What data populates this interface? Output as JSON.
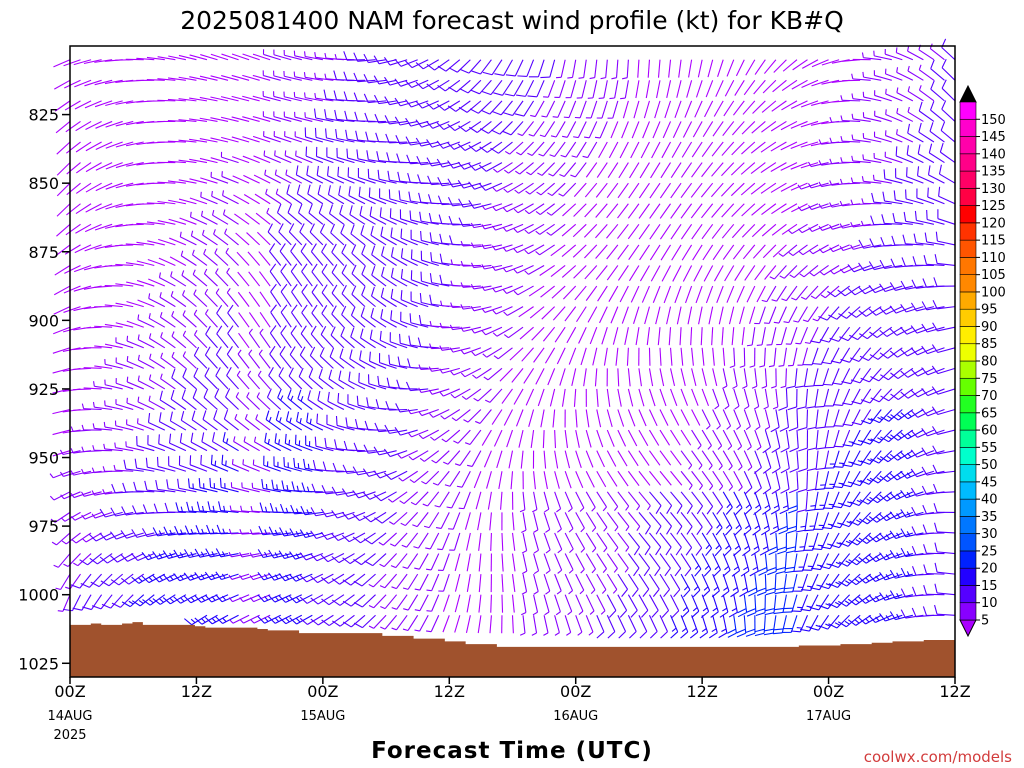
{
  "chart_data": {
    "type": "wind_barb_profile",
    "title": "2025081400 NAM forecast wind profile (kt) for KB#Q",
    "xlabel": "Forecast Time (UTC)",
    "ylabel": "",
    "credit": "coolwx.com/models",
    "y_axis": {
      "range_hpa": [
        1030,
        800
      ],
      "ticks": [
        "825",
        "850",
        "875",
        "900",
        "925",
        "950",
        "975",
        "1000",
        "1025"
      ]
    },
    "x_axis": {
      "range_hours": [
        0,
        84
      ],
      "ticks": [
        {
          "hour": 0,
          "label": "00Z",
          "date": "14AUG",
          "year": "2025"
        },
        {
          "hour": 12,
          "label": "12Z",
          "date": "",
          "year": ""
        },
        {
          "hour": 24,
          "label": "00Z",
          "date": "15AUG",
          "year": ""
        },
        {
          "hour": 36,
          "label": "12Z",
          "date": "",
          "year": ""
        },
        {
          "hour": 48,
          "label": "00Z",
          "date": "16AUG",
          "year": ""
        },
        {
          "hour": 60,
          "label": "12Z",
          "date": "",
          "year": ""
        },
        {
          "hour": 72,
          "label": "00Z",
          "date": "17AUG",
          "year": ""
        },
        {
          "hour": 84,
          "label": "12Z",
          "date": "",
          "year": ""
        }
      ]
    },
    "surface_pressure_hpa": [
      1011,
      1011,
      1010.5,
      1011,
      1011,
      1010.5,
      1010,
      1011,
      1011,
      1011,
      1011,
      1011,
      1011.5,
      1012,
      1012,
      1012,
      1012,
      1012,
      1012.5,
      1013,
      1013,
      1013,
      1014,
      1014,
      1014,
      1014,
      1014,
      1014,
      1014,
      1014,
      1015,
      1015,
      1015,
      1016,
      1016,
      1016,
      1017,
      1017,
      1018,
      1018,
      1018,
      1019,
      1019,
      1019,
      1019,
      1019,
      1019,
      1019,
      1019,
      1019,
      1019,
      1019,
      1019,
      1019,
      1019,
      1019,
      1019,
      1019,
      1019,
      1019,
      1019,
      1019,
      1019,
      1019,
      1019,
      1019,
      1019,
      1019,
      1019,
      1019,
      1018.5,
      1018.5,
      1018.5,
      1018.5,
      1018,
      1018,
      1018,
      1017.5,
      1017.5,
      1017,
      1017,
      1017,
      1016.5,
      1016.5,
      1016.5
    ],
    "barb_grid": {
      "hour_step": 1,
      "pressure_start_hpa": 805,
      "pressure_step_hpa": 7.5,
      "speed_color_scale_kt": true
    },
    "colorbar": {
      "labels": [
        "5",
        "10",
        "15",
        "20",
        "25",
        "30",
        "35",
        "40",
        "45",
        "50",
        "55",
        "60",
        "65",
        "70",
        "75",
        "80",
        "85",
        "90",
        "95",
        "100",
        "105",
        "110",
        "115",
        "120",
        "125",
        "130",
        "135",
        "140",
        "145",
        "150"
      ],
      "colors": [
        "#8800ff",
        "#5500ff",
        "#2200ff",
        "#0022ff",
        "#0055ff",
        "#0077ff",
        "#0099ff",
        "#00bbff",
        "#00ddee",
        "#00ffcc",
        "#00ff99",
        "#00ff55",
        "#22ff22",
        "#66ff00",
        "#aaff00",
        "#eeff00",
        "#ffee00",
        "#ffcc00",
        "#ffaa00",
        "#ff8800",
        "#ff7700",
        "#ff5500",
        "#ff3300",
        "#ff0000",
        "#ff0044",
        "#ff0066",
        "#ff0088",
        "#ff00aa",
        "#ff00cc",
        "#ff00ff"
      ],
      "low_cap_color": "#aa00ff",
      "high_cap_color": "#000000"
    },
    "colors": {
      "ground": "#a0522d",
      "frame": "#000000",
      "credit": "#d23c3c"
    }
  }
}
